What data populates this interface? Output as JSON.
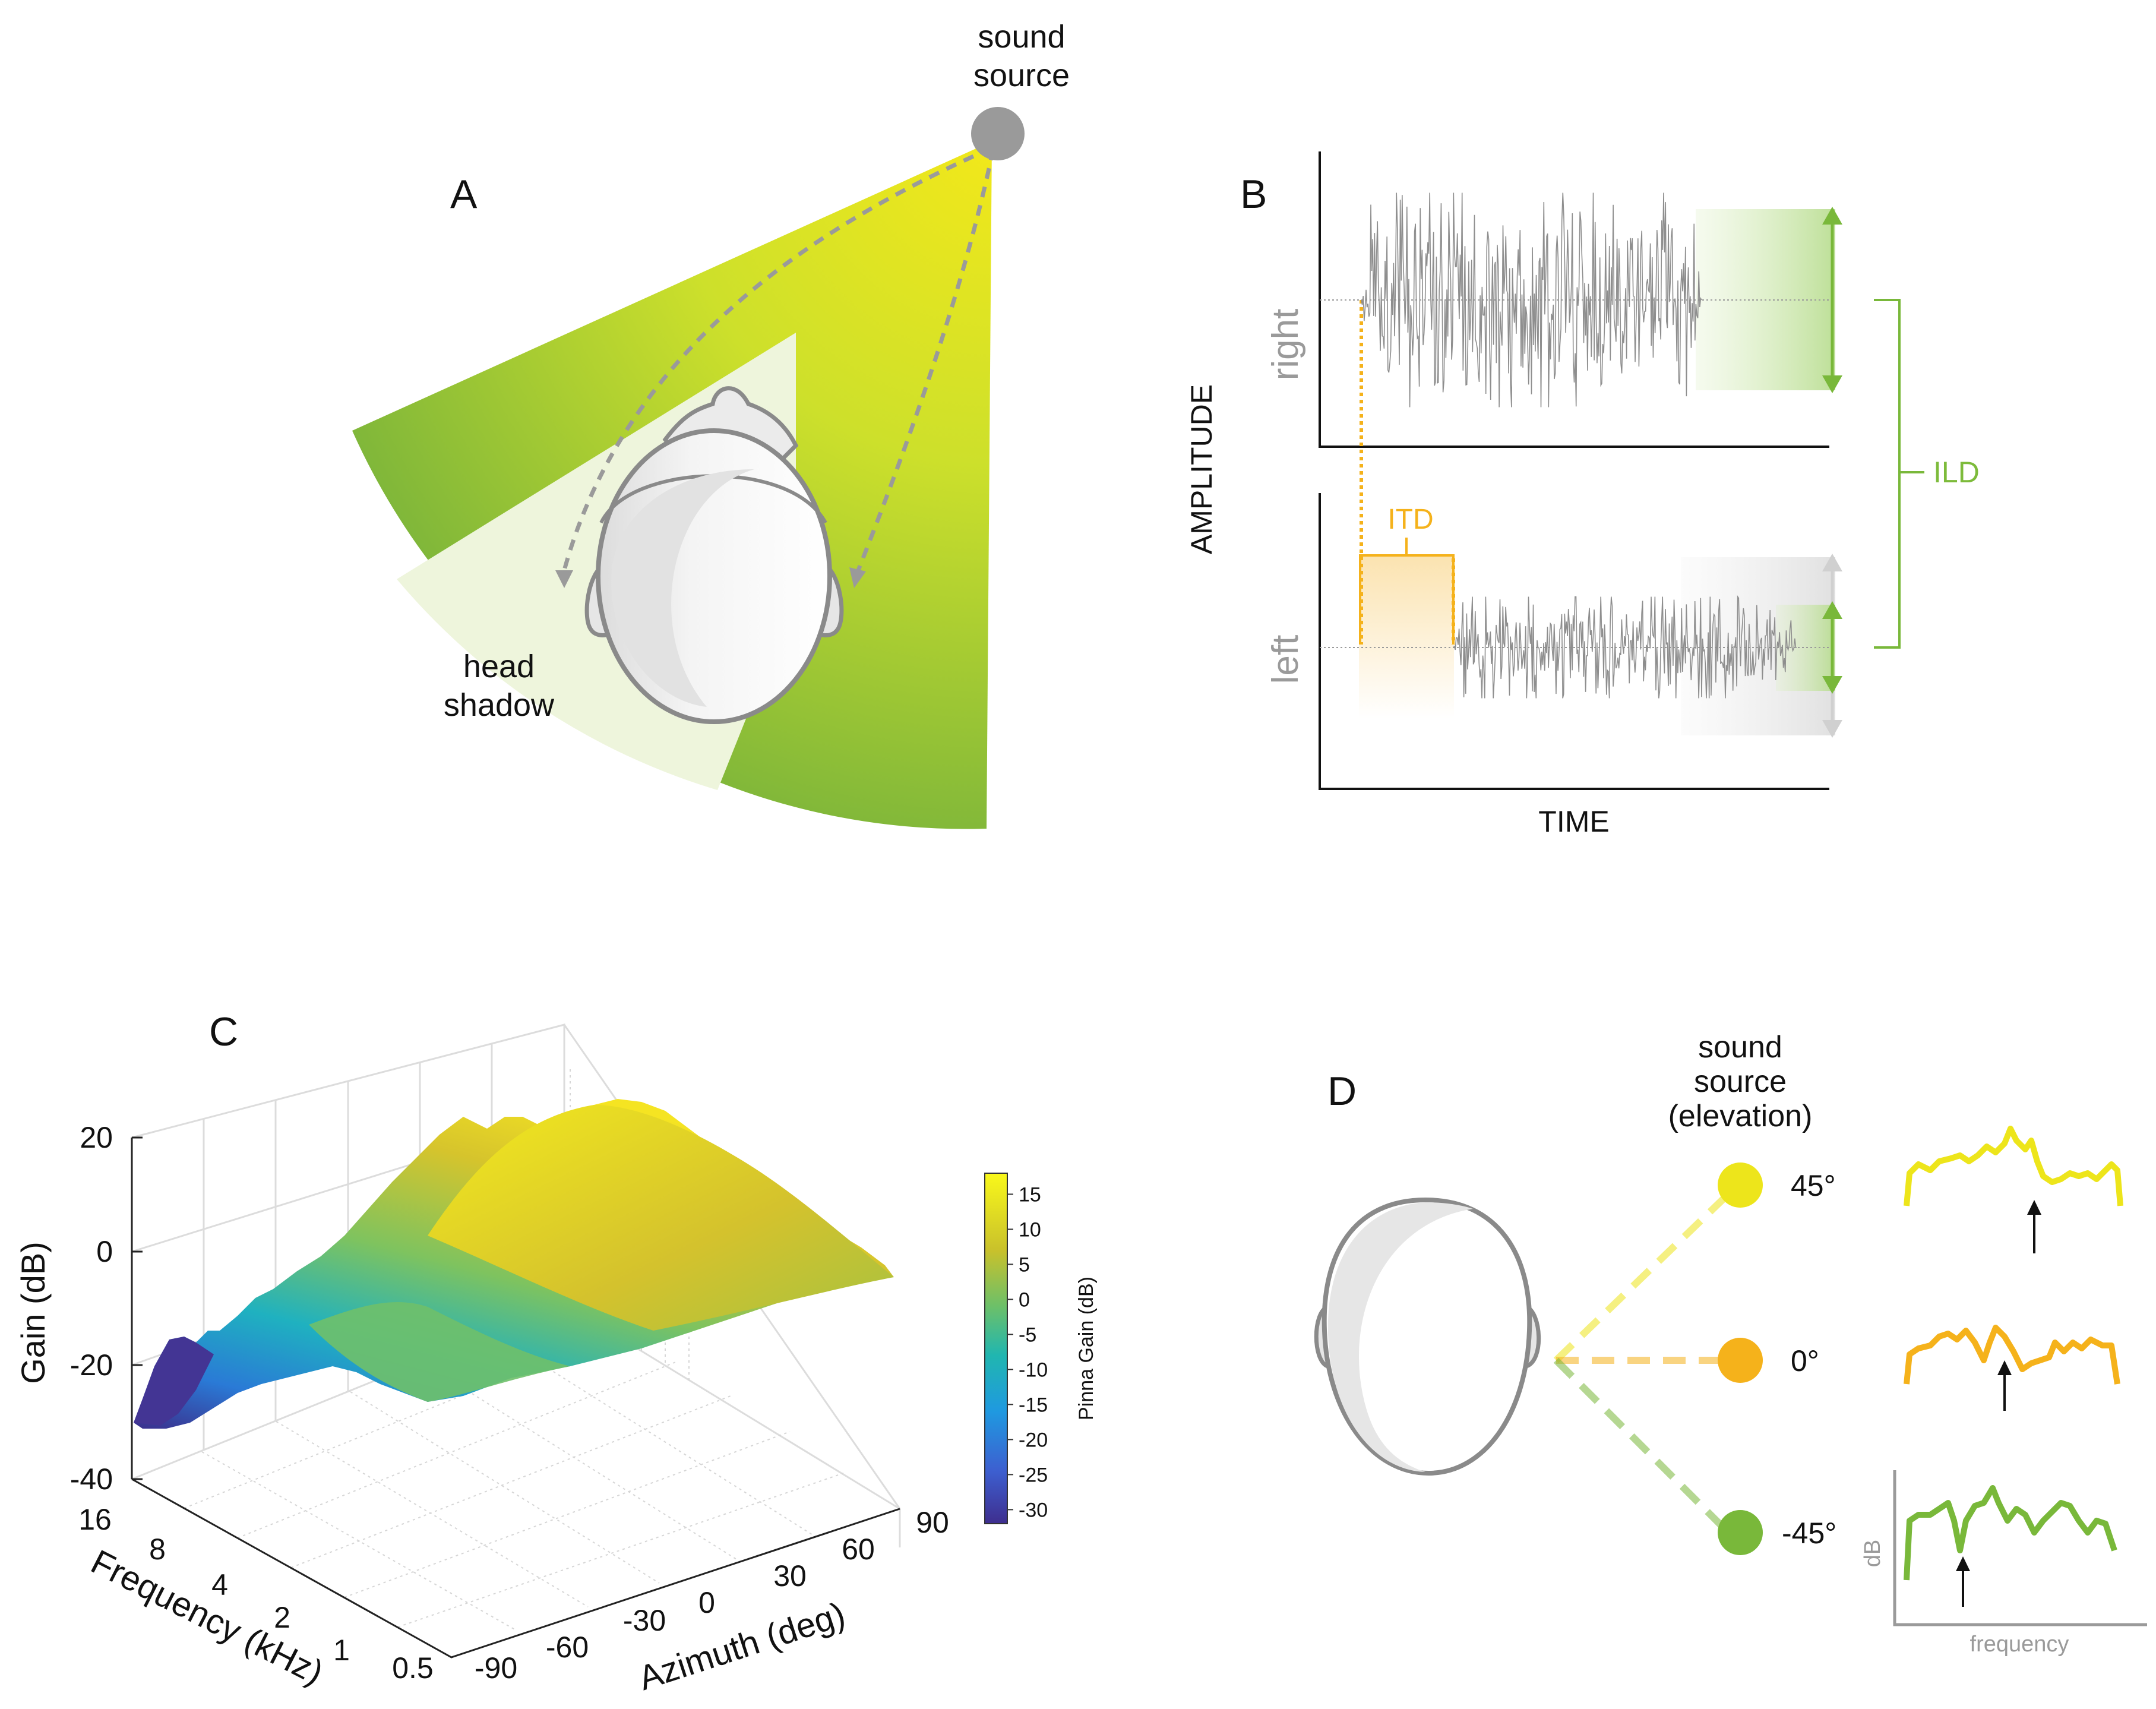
{
  "colors": {
    "yellow": "#ede51b",
    "green": "#79b83a",
    "orange": "#f5b21b",
    "gray": "#9a9a9a",
    "dark_gray": "#8a8a8a"
  },
  "panel_a": {
    "letter": "A",
    "source_label_line1": "sound",
    "source_label_line2": "source",
    "shadow_label_line1": "head",
    "shadow_label_line2": "shadow"
  },
  "panel_b": {
    "letter": "B",
    "y_axis_label": "AMPLITUDE",
    "x_axis_label": "TIME",
    "channel_right": "right",
    "channel_left": "left",
    "itd_label": "ITD",
    "ild_label": "ILD"
  },
  "panel_c": {
    "letter": "C",
    "chart_data": {
      "type": "surface3d",
      "zlabel": "Gain (dB)",
      "xlabel": "Azimuth (deg)",
      "ylabel": "Frequency (kHz)",
      "colorbar_label": "Pinna Gain (dB)",
      "z_ticks": [
        "20",
        "0",
        "-20",
        "-40"
      ],
      "zlim": [
        -40,
        20
      ],
      "azimuth_ticks": [
        "-90",
        "-60",
        "-30",
        "0",
        "30",
        "60",
        "90"
      ],
      "frequency_ticks": [
        "16",
        "8",
        "4",
        "2",
        "1",
        "0.5"
      ],
      "colorbar_ticks": [
        "15",
        "10",
        "5",
        "0",
        "-5",
        "-10",
        "-15",
        "-20",
        "-25",
        "-30"
      ],
      "colorbar_range": [
        -32,
        18
      ]
    }
  },
  "panel_d": {
    "letter": "D",
    "title_line1": "sound",
    "title_line2": "source",
    "title_line3": "(elevation)",
    "elevations": [
      {
        "label": "45°",
        "color": "#ede51b"
      },
      {
        "label": "0°",
        "color": "#f5b21b"
      },
      {
        "label": "-45°",
        "color": "#79b83a"
      }
    ],
    "spectrum_ylabel": "dB",
    "spectrum_xlabel": "frequency"
  }
}
